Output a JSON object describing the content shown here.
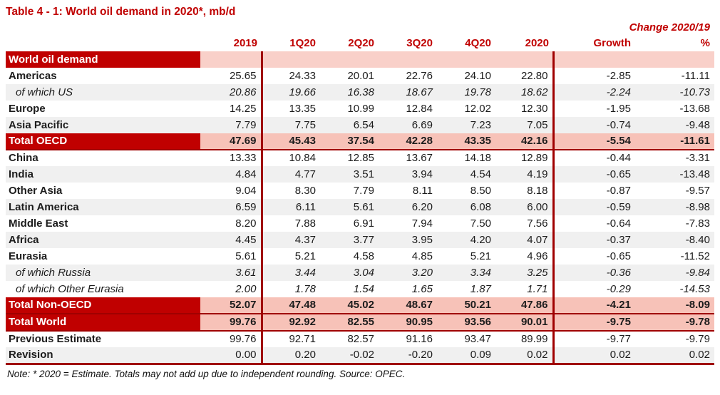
{
  "title": "Table 4 - 1: World oil demand in 2020*, mb/d",
  "change_header": "Change 2020/19",
  "columns": [
    "2019",
    "1Q20",
    "2Q20",
    "3Q20",
    "4Q20",
    "2020",
    "Growth",
    "%"
  ],
  "section_header": "World oil demand",
  "rows": [
    {
      "label": "Americas",
      "type": "normal",
      "shade": "white",
      "rule_below": false,
      "values": [
        "25.65",
        "24.33",
        "20.01",
        "22.76",
        "24.10",
        "22.80",
        "-2.85",
        "-11.11"
      ]
    },
    {
      "label": "of which US",
      "type": "sub",
      "shade": "gray",
      "rule_below": false,
      "values": [
        "20.86",
        "19.66",
        "16.38",
        "18.67",
        "19.78",
        "18.62",
        "-2.24",
        "-10.73"
      ]
    },
    {
      "label": "Europe",
      "type": "normal",
      "shade": "white",
      "rule_below": false,
      "values": [
        "14.25",
        "13.35",
        "10.99",
        "12.84",
        "12.02",
        "12.30",
        "-1.95",
        "-13.68"
      ]
    },
    {
      "label": "Asia Pacific",
      "type": "normal",
      "shade": "gray",
      "rule_below": false,
      "values": [
        "7.79",
        "7.75",
        "6.54",
        "6.69",
        "7.23",
        "7.05",
        "-0.74",
        "-9.48"
      ]
    },
    {
      "label": "Total OECD",
      "type": "total",
      "shade": "pink",
      "rule_below": true,
      "values": [
        "47.69",
        "45.43",
        "37.54",
        "42.28",
        "43.35",
        "42.16",
        "-5.54",
        "-11.61"
      ]
    },
    {
      "label": "China",
      "type": "normal",
      "shade": "white",
      "rule_below": false,
      "values": [
        "13.33",
        "10.84",
        "12.85",
        "13.67",
        "14.18",
        "12.89",
        "-0.44",
        "-3.31"
      ]
    },
    {
      "label": "India",
      "type": "normal",
      "shade": "gray",
      "rule_below": false,
      "values": [
        "4.84",
        "4.77",
        "3.51",
        "3.94",
        "4.54",
        "4.19",
        "-0.65",
        "-13.48"
      ]
    },
    {
      "label": "Other Asia",
      "type": "normal",
      "shade": "white",
      "rule_below": false,
      "values": [
        "9.04",
        "8.30",
        "7.79",
        "8.11",
        "8.50",
        "8.18",
        "-0.87",
        "-9.57"
      ]
    },
    {
      "label": "Latin America",
      "type": "normal",
      "shade": "gray",
      "rule_below": false,
      "values": [
        "6.59",
        "6.11",
        "5.61",
        "6.20",
        "6.08",
        "6.00",
        "-0.59",
        "-8.98"
      ]
    },
    {
      "label": "Middle East",
      "type": "normal",
      "shade": "white",
      "rule_below": false,
      "values": [
        "8.20",
        "7.88",
        "6.91",
        "7.94",
        "7.50",
        "7.56",
        "-0.64",
        "-7.83"
      ]
    },
    {
      "label": "Africa",
      "type": "normal",
      "shade": "gray",
      "rule_below": false,
      "values": [
        "4.45",
        "4.37",
        "3.77",
        "3.95",
        "4.20",
        "4.07",
        "-0.37",
        "-8.40"
      ]
    },
    {
      "label": "Eurasia",
      "type": "normal",
      "shade": "white",
      "rule_below": false,
      "values": [
        "5.61",
        "5.21",
        "4.58",
        "4.85",
        "5.21",
        "4.96",
        "-0.65",
        "-11.52"
      ]
    },
    {
      "label": "of which Russia",
      "type": "sub",
      "shade": "gray",
      "rule_below": false,
      "values": [
        "3.61",
        "3.44",
        "3.04",
        "3.20",
        "3.34",
        "3.25",
        "-0.36",
        "-9.84"
      ]
    },
    {
      "label": "of which Other Eurasia",
      "type": "sub",
      "shade": "white",
      "rule_below": false,
      "values": [
        "2.00",
        "1.78",
        "1.54",
        "1.65",
        "1.87",
        "1.71",
        "-0.29",
        "-14.53"
      ]
    },
    {
      "label": "Total Non-OECD",
      "type": "total",
      "shade": "pink",
      "rule_below": true,
      "values": [
        "52.07",
        "47.48",
        "45.02",
        "48.67",
        "50.21",
        "47.86",
        "-4.21",
        "-8.09"
      ]
    },
    {
      "label": "Total World",
      "type": "total",
      "shade": "pink",
      "rule_below": true,
      "values": [
        "99.76",
        "92.92",
        "82.55",
        "90.95",
        "93.56",
        "90.01",
        "-9.75",
        "-9.78"
      ]
    },
    {
      "label": "Previous Estimate",
      "type": "normal",
      "shade": "white",
      "rule_below": false,
      "values": [
        "99.76",
        "92.71",
        "82.57",
        "91.16",
        "93.47",
        "89.99",
        "-9.77",
        "-9.79"
      ]
    },
    {
      "label": "Revision",
      "type": "normal",
      "shade": "gray",
      "rule_below": false,
      "values": [
        "0.00",
        "0.20",
        "-0.02",
        "-0.20",
        "0.09",
        "0.02",
        "0.02",
        "0.02"
      ]
    }
  ],
  "note": "Note: * 2020 = Estimate. Totals may not add up due to independent rounding. Source: OPEC.",
  "colors": {
    "dark_red": "#c00000",
    "rule_red": "#a00000",
    "total_pink": "#f7c2b8",
    "band_pink": "#f9d0c9",
    "alt_gray": "#f0f0f0"
  }
}
